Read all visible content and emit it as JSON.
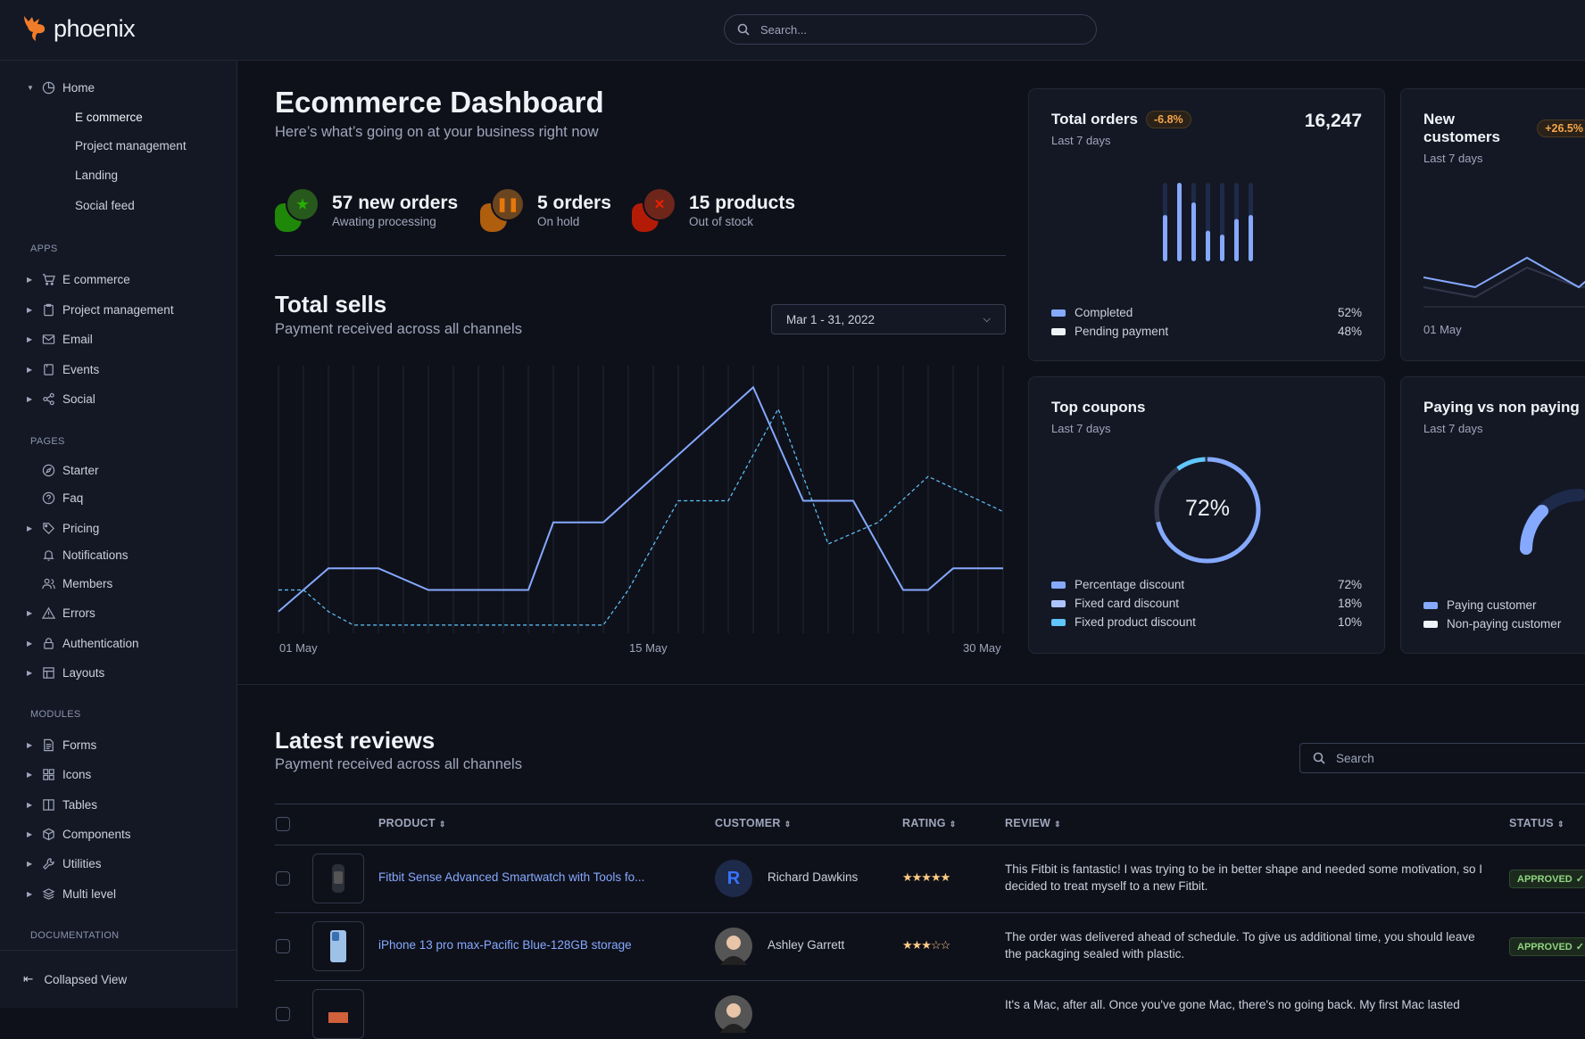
{
  "brand": {
    "name": "phoenix"
  },
  "search": {
    "placeholder": "Search..."
  },
  "sidebar": {
    "home": {
      "label": "Home",
      "children": [
        "E commerce",
        "Project management",
        "Landing",
        "Social feed"
      ],
      "active": "E commerce"
    },
    "sections": [
      {
        "title": "APPS",
        "items": [
          {
            "label": "E commerce",
            "icon": "cart-icon"
          },
          {
            "label": "Project management",
            "icon": "clipboard-icon"
          },
          {
            "label": "Email",
            "icon": "mail-icon"
          },
          {
            "label": "Events",
            "icon": "bookmark-icon"
          },
          {
            "label": "Social",
            "icon": "share-icon"
          }
        ]
      },
      {
        "title": "PAGES",
        "items": [
          {
            "label": "Starter",
            "icon": "compass-icon"
          },
          {
            "label": "Faq",
            "icon": "help-icon"
          },
          {
            "label": "Pricing",
            "icon": "tag-icon"
          },
          {
            "label": "Notifications",
            "icon": "bell-icon"
          },
          {
            "label": "Members",
            "icon": "users-icon"
          },
          {
            "label": "Errors",
            "icon": "alert-icon"
          },
          {
            "label": "Authentication",
            "icon": "lock-icon"
          },
          {
            "label": "Layouts",
            "icon": "layout-icon"
          }
        ]
      },
      {
        "title": "MODULES",
        "items": [
          {
            "label": "Forms",
            "icon": "file-text-icon"
          },
          {
            "label": "Icons",
            "icon": "grid-icon"
          },
          {
            "label": "Tables",
            "icon": "columns-icon"
          },
          {
            "label": "Components",
            "icon": "package-icon"
          },
          {
            "label": "Utilities",
            "icon": "tool-icon"
          },
          {
            "label": "Multi level",
            "icon": "layers-icon"
          }
        ]
      },
      {
        "title": "DOCUMENTATION",
        "items": []
      }
    ],
    "collapse_label": "Collapsed View"
  },
  "header": {
    "title": "Ecommerce Dashboard",
    "subtitle": "Here’s what’s going on at your business right now"
  },
  "stats": [
    {
      "value": "57 new orders",
      "label": "Awating processing",
      "icon": "star-icon",
      "color": "#25b003"
    },
    {
      "value": "5 orders",
      "label": "On hold",
      "icon": "pause-icon",
      "color": "#e5780b"
    },
    {
      "value": "15 products",
      "label": "Out of stock",
      "icon": "x-icon",
      "color": "#ec1f00"
    }
  ],
  "sells": {
    "title": "Total sells",
    "subtitle": "Payment received across all channels",
    "date_range": "Mar 1 - 31, 2022",
    "x_labels": [
      "01 May",
      "15 May",
      "30 May"
    ]
  },
  "chart_data": [
    {
      "type": "line",
      "title": "Total sells",
      "x_unit": "day of May",
      "xlim": [
        1,
        30
      ],
      "ylim": [
        0,
        100
      ],
      "grid": "vertical",
      "series": [
        {
          "style": "solid",
          "color": "#85a9ff",
          "points": [
            [
              1,
              9
            ],
            [
              3,
              25
            ],
            [
              5,
              25
            ],
            [
              7,
              17
            ],
            [
              11,
              17
            ],
            [
              12,
              42
            ],
            [
              14,
              42
            ],
            [
              20,
              92
            ],
            [
              22,
              50
            ],
            [
              24,
              50
            ],
            [
              26,
              17
            ],
            [
              27,
              17
            ],
            [
              28,
              25
            ],
            [
              30,
              25
            ]
          ]
        },
        {
          "style": "dashed",
          "color": "#60c6ff",
          "points": [
            [
              1,
              17
            ],
            [
              2,
              17
            ],
            [
              3,
              9
            ],
            [
              4,
              4
            ],
            [
              14,
              4
            ],
            [
              15,
              17
            ],
            [
              17,
              50
            ],
            [
              19,
              50
            ],
            [
              21,
              84
            ],
            [
              23,
              34
            ],
            [
              25,
              42
            ],
            [
              27,
              59
            ],
            [
              30,
              46
            ]
          ]
        }
      ]
    },
    {
      "type": "bar",
      "title": "Total orders",
      "values": [
        0.59,
        1.0,
        0.75,
        0.39,
        0.34,
        0.54,
        0.59
      ],
      "ylim": [
        0,
        1
      ]
    },
    {
      "type": "pie",
      "title": "Top coupons",
      "center_label": "72%",
      "slices": [
        {
          "name": "Percentage discount",
          "value": 72,
          "color": "#85a9ff"
        },
        {
          "name": "Fixed card discount",
          "value": 18,
          "color": "#31374a"
        },
        {
          "name": "Fixed product discount",
          "value": 10,
          "color": "#60c6ff"
        }
      ]
    }
  ],
  "cards": {
    "total_orders": {
      "title": "Total orders",
      "badge": "-6.8%",
      "subtitle": "Last 7 days",
      "value": "16,247",
      "legend": [
        {
          "label": "Completed",
          "value": "52%",
          "color": "#85a9ff"
        },
        {
          "label": "Pending payment",
          "value": "48%",
          "color": "#eff2f6"
        }
      ]
    },
    "new_customers": {
      "title": "New customers",
      "badge": "+26.5%",
      "subtitle": "Last 7 days",
      "x_label": "01 May"
    },
    "top_coupons": {
      "title": "Top coupons",
      "subtitle": "Last 7 days",
      "center": "72%",
      "legend": [
        {
          "label": "Percentage discount",
          "value": "72%",
          "color": "#85a9ff"
        },
        {
          "label": "Fixed card discount",
          "value": "18%",
          "color": "#adc3ff"
        },
        {
          "label": "Fixed product discount",
          "value": "10%",
          "color": "#60c6ff"
        }
      ]
    },
    "paying": {
      "title": "Paying vs non paying",
      "subtitle": "Last 7 days",
      "legend": [
        {
          "label": "Paying customer",
          "color": "#85a9ff"
        },
        {
          "label": "Non-paying customer",
          "color": "#eff2f6"
        }
      ]
    }
  },
  "reviews": {
    "title": "Latest reviews",
    "subtitle": "Payment received across all channels",
    "search_placeholder": "Search",
    "columns": [
      "PRODUCT",
      "CUSTOMER",
      "RATING",
      "REVIEW",
      "STATUS"
    ],
    "rows": [
      {
        "product": "Fitbit Sense Advanced Smartwatch with Tools fo...",
        "customer": "Richard Dawkins",
        "initial": "R",
        "rating": 5,
        "stars": "★★★★★",
        "review": "This Fitbit is fantastic! I was trying to be in better shape and needed some motivation, so I decided to treat myself to a new Fitbit.",
        "status": "APPROVED"
      },
      {
        "product": "iPhone 13 pro max-Pacific Blue-128GB storage",
        "customer": "Ashley Garrett",
        "rating": 3,
        "stars": "★★★☆☆",
        "review": "The order was delivered ahead of schedule. To give us additional time, you should leave the packaging sealed with plastic.",
        "status": "APPROVED"
      },
      {
        "review": "It's a Mac, after all. Once you've gone Mac, there's no going back. My first Mac lasted"
      }
    ]
  }
}
